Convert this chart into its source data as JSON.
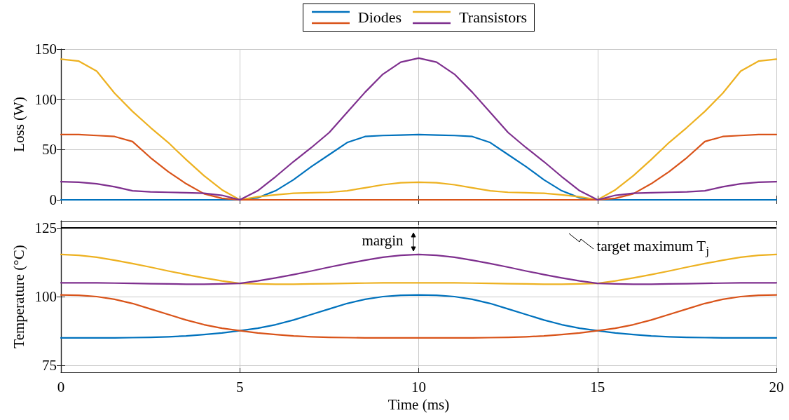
{
  "chart_data": [
    {
      "type": "line",
      "ylabel": "Loss (W)",
      "legend": "top",
      "grid": true,
      "tick_labels": "y",
      "marker": "none",
      "line_style": "solid",
      "x": [
        0,
        0.5,
        1,
        1.5,
        2,
        2.5,
        3,
        3.5,
        4,
        4.5,
        5,
        5.5,
        6,
        6.5,
        7,
        7.5,
        8,
        8.5,
        9,
        9.5,
        10,
        10.5,
        11,
        11.5,
        12,
        12.5,
        13,
        13.5,
        14,
        14.5,
        15,
        15.5,
        16,
        16.5,
        17,
        17.5,
        18,
        18.5,
        19,
        19.5,
        20
      ],
      "xlim": [
        0,
        20
      ],
      "xticks": [
        0,
        5,
        10,
        15,
        20
      ],
      "ylim": [
        0,
        150
      ],
      "yticks": [
        0,
        50,
        100,
        150
      ],
      "series": [
        {
          "name": "Diodes",
          "color": "#0072bd",
          "values": [
            0,
            0,
            0,
            0,
            0,
            0,
            0,
            0,
            0,
            0,
            0,
            2,
            9,
            20,
            33,
            45,
            57,
            63,
            64,
            64.5,
            65,
            64.5,
            64,
            63,
            57,
            45,
            33,
            20,
            9,
            2,
            0,
            0,
            0,
            0,
            0,
            0,
            0,
            0,
            0,
            0,
            0
          ]
        },
        {
          "name": "Transistors",
          "color": "#edb120",
          "values": [
            140,
            138,
            128,
            106,
            88,
            72,
            57,
            40,
            24,
            10,
            0,
            3,
            5,
            6.5,
            7,
            7.5,
            9,
            12,
            15,
            17,
            17.5,
            17,
            15,
            12,
            9,
            7.5,
            7,
            6.5,
            5,
            3,
            0,
            10,
            24,
            40,
            57,
            72,
            88,
            106,
            128,
            138,
            140
          ]
        },
        {
          "color": "#d95319",
          "values": [
            65,
            65,
            64,
            63,
            58,
            42,
            28,
            16,
            6,
            1.5,
            0,
            0,
            0,
            0,
            0,
            0,
            0,
            0,
            0,
            0,
            0,
            0,
            0,
            0,
            0,
            0,
            0,
            0,
            0,
            0,
            0,
            1.5,
            6,
            16,
            28,
            42,
            58,
            63,
            64,
            65,
            65
          ]
        },
        {
          "color": "#7e2f8e",
          "values": [
            18,
            17.5,
            16,
            13,
            9,
            8,
            7.5,
            7,
            6.5,
            4.5,
            0,
            9,
            23,
            38,
            52,
            67,
            87,
            107,
            125,
            137,
            141,
            137,
            125,
            107,
            87,
            67,
            52,
            38,
            23,
            9,
            0,
            4.5,
            6.5,
            7,
            7.5,
            8,
            9,
            13,
            16,
            17.5,
            18
          ]
        }
      ]
    },
    {
      "type": "line",
      "xlabel": "Time (ms)",
      "ylabel": "Temperature (°C)",
      "grid": true,
      "marker": "none",
      "line_style": "solid",
      "x": [
        0,
        0.5,
        1,
        1.5,
        2,
        2.5,
        3,
        3.5,
        4,
        4.5,
        5,
        5.5,
        6,
        6.5,
        7,
        7.5,
        8,
        8.5,
        9,
        9.5,
        10,
        10.5,
        11,
        11.5,
        12,
        12.5,
        13,
        13.5,
        14,
        14.5,
        15,
        15.5,
        16,
        16.5,
        17,
        17.5,
        18,
        18.5,
        19,
        19.5,
        20
      ],
      "xlim": [
        0,
        20
      ],
      "xticks": [
        0,
        5,
        10,
        15,
        20
      ],
      "ylim": [
        72.5,
        127.5
      ],
      "yticks": [
        75,
        100,
        125
      ],
      "series": [
        {
          "color": "#0072bd",
          "values": [
            85,
            85,
            85,
            85,
            85.1,
            85.2,
            85.4,
            85.7,
            86.2,
            86.8,
            87.6,
            88.5,
            89.8,
            91.5,
            93.5,
            95.5,
            97.5,
            99,
            100,
            100.5,
            100.6,
            100.5,
            100,
            99,
            97.5,
            95.5,
            93.5,
            91.5,
            89.8,
            88.5,
            87.6,
            86.8,
            86.2,
            85.7,
            85.4,
            85.2,
            85.1,
            85,
            85,
            85,
            85
          ]
        },
        {
          "color": "#d95319",
          "values": [
            100.6,
            100.5,
            100,
            99,
            97.5,
            95.5,
            93.5,
            91.5,
            89.8,
            88.5,
            87.6,
            86.8,
            86.2,
            85.7,
            85.4,
            85.2,
            85.1,
            85,
            85,
            85,
            85,
            85,
            85,
            85,
            85.1,
            85.2,
            85.4,
            85.7,
            86.2,
            86.8,
            87.6,
            88.5,
            89.8,
            91.5,
            93.5,
            95.5,
            97.5,
            99,
            100,
            100.5,
            100.6
          ]
        },
        {
          "color": "#edb120",
          "values": [
            115.3,
            115,
            114.3,
            113.2,
            112,
            110.7,
            109.3,
            108,
            106.8,
            105.7,
            104.8,
            104.6,
            104.5,
            104.5,
            104.6,
            104.7,
            104.8,
            104.9,
            105,
            105,
            105,
            105,
            105,
            104.9,
            104.8,
            104.7,
            104.6,
            104.5,
            104.5,
            104.6,
            104.8,
            105.7,
            106.8,
            108,
            109.3,
            110.7,
            112,
            113.2,
            114.3,
            115,
            115.3
          ]
        },
        {
          "color": "#7e2f8e",
          "values": [
            105,
            105,
            105,
            104.9,
            104.8,
            104.7,
            104.6,
            104.5,
            104.5,
            104.6,
            104.8,
            105.7,
            106.8,
            108,
            109.3,
            110.7,
            112,
            113.2,
            114.3,
            115,
            115.3,
            115,
            114.3,
            113.2,
            112,
            110.7,
            109.3,
            108,
            106.8,
            105.7,
            104.8,
            104.6,
            104.5,
            104.5,
            104.6,
            104.7,
            104.8,
            104.9,
            105,
            105,
            105
          ]
        }
      ],
      "ref_lines": [
        {
          "axis": "y",
          "value": 125,
          "label": "target maximum T$_{j}$",
          "color": "#000000"
        }
      ],
      "annotations": [
        "margin"
      ]
    }
  ]
}
